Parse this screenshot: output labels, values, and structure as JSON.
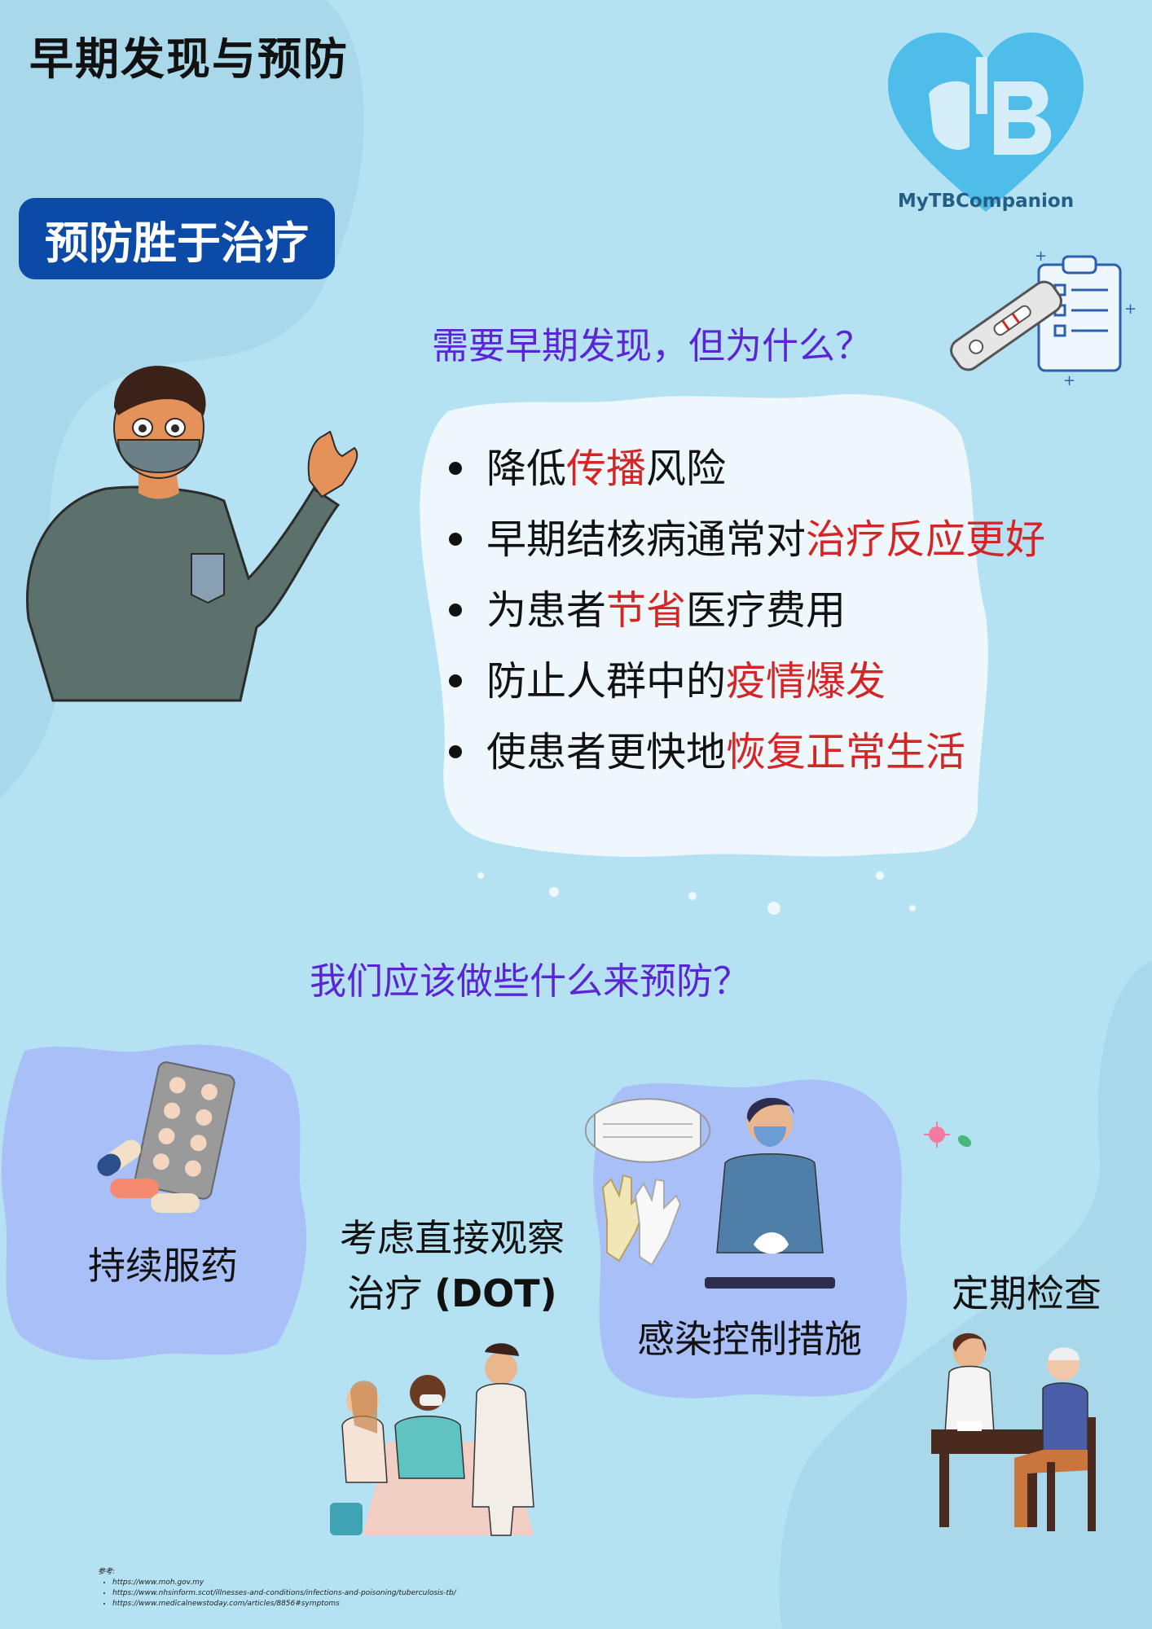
{
  "page": {
    "title": "早期发现与预防",
    "badge": "预防胜于治疗",
    "brand": "MyTBCompanion",
    "logo_icon": "heart-lungs-tb-logo-icon"
  },
  "early_detection": {
    "question": "需要早期发现，但为什么？",
    "items": [
      {
        "plain": "降低",
        "highlight": "传播",
        "after": "风险"
      },
      {
        "plain": "早期结核病通常对",
        "highlight": "治疗反应更好",
        "after": ""
      },
      {
        "plain": "为患者",
        "highlight": "节省",
        "after": "医疗费用"
      },
      {
        "plain": "防止人群中的",
        "highlight": "疫情爆发",
        "after": ""
      },
      {
        "plain": "使患者更快地",
        "highlight": "恢复正常生活",
        "after": ""
      }
    ]
  },
  "prevention": {
    "question": "我们应该做些什么来预防？",
    "meds": "持续服药",
    "dot_line1": "考虑直接观察",
    "dot_line2_plain": "治疗 ",
    "dot_line2_bold": "(DOT)",
    "infection_control": "感染控制措施",
    "checkups": "定期检查"
  },
  "references": {
    "label": "参考:",
    "links": [
      "https://www.moh.gov.my",
      "https://www.nhsinform.scot/illnesses-and-conditions/infections-and-poisoning/tuberculosis-tb/",
      "https://www.medicalnewstoday.com/articles/8856#symptoms"
    ]
  },
  "colors": {
    "background": "#b5e2f3",
    "badge": "#0b4aa6",
    "question": "#5b25d6",
    "highlight": "#d42626",
    "card": "#a9bff7"
  }
}
